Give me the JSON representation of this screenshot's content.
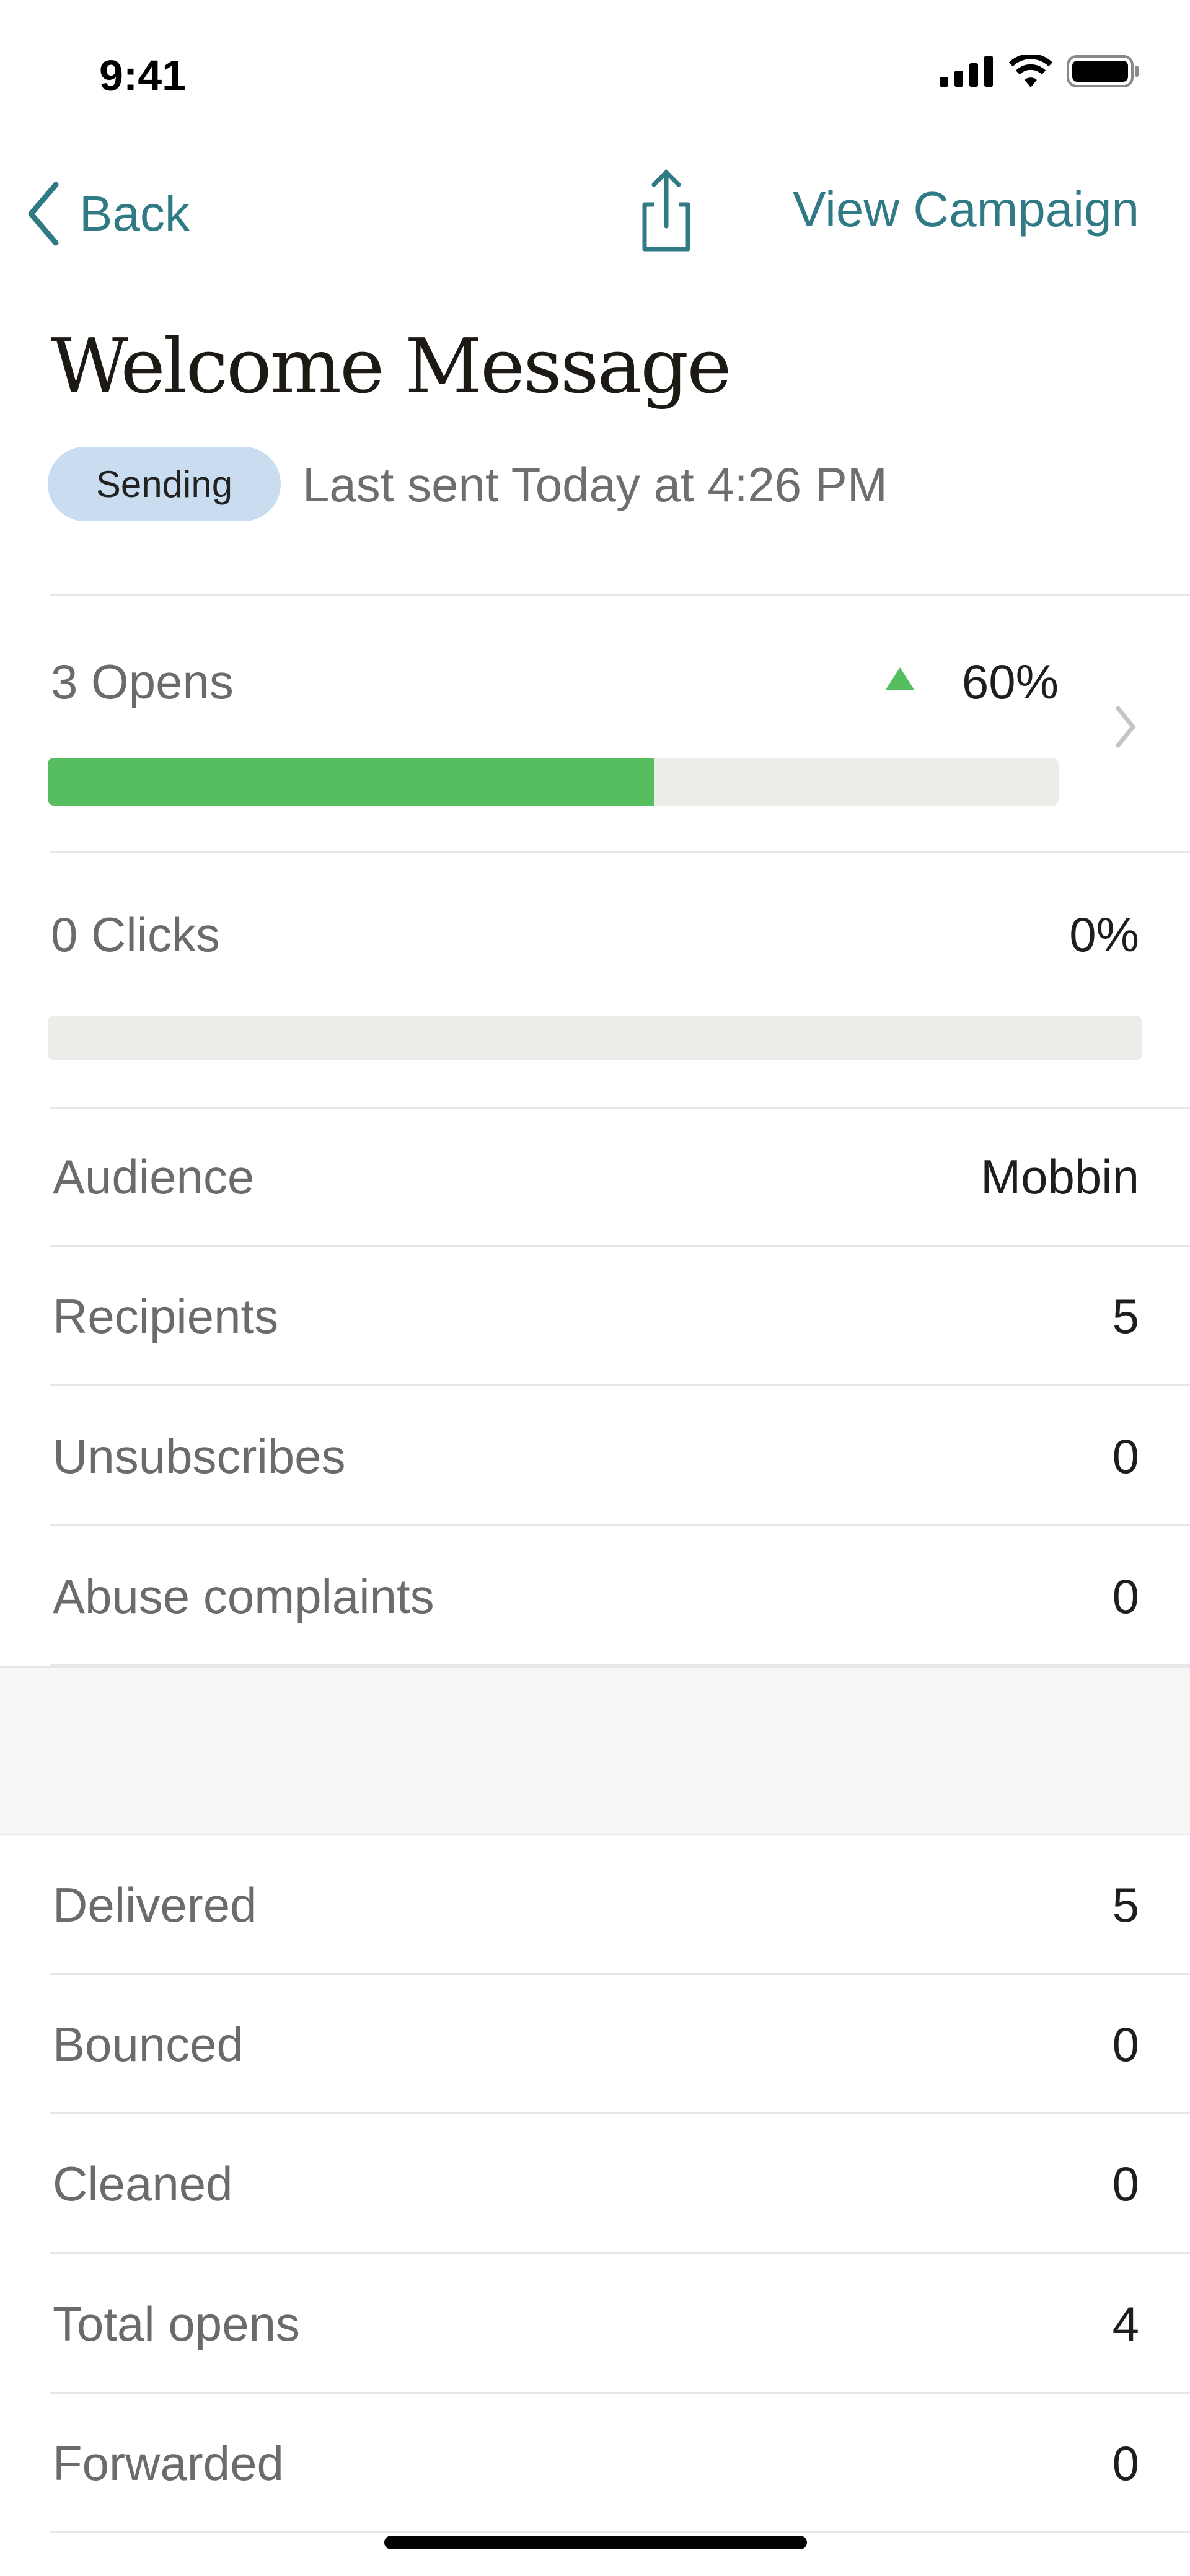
{
  "status_bar": {
    "time": "9:41"
  },
  "nav": {
    "back": "Back",
    "view_campaign": "View Campaign"
  },
  "header": {
    "title": "Welcome Message",
    "status": "Sending",
    "last_sent": "Last sent Today at 4:26 PM"
  },
  "opens": {
    "label": "3 Opens",
    "percent": "60%",
    "fill": 0.6,
    "trend": "up"
  },
  "clicks": {
    "label": "0 Clicks",
    "percent": "0%",
    "fill": 0
  },
  "stats": [
    {
      "label": "Audience",
      "value": "Mobbin"
    },
    {
      "label": "Recipients",
      "value": "5"
    },
    {
      "label": "Unsubscribes",
      "value": "0"
    },
    {
      "label": "Abuse complaints",
      "value": "0"
    }
  ],
  "delivery": [
    {
      "label": "Delivered",
      "value": "5"
    },
    {
      "label": "Bounced",
      "value": "0"
    },
    {
      "label": "Cleaned",
      "value": "0"
    },
    {
      "label": "Total opens",
      "value": "4"
    },
    {
      "label": "Forwarded",
      "value": "0"
    }
  ],
  "colors": {
    "accent": "#2f7a85",
    "progress": "#57be60",
    "badge": "#cadcf0"
  }
}
